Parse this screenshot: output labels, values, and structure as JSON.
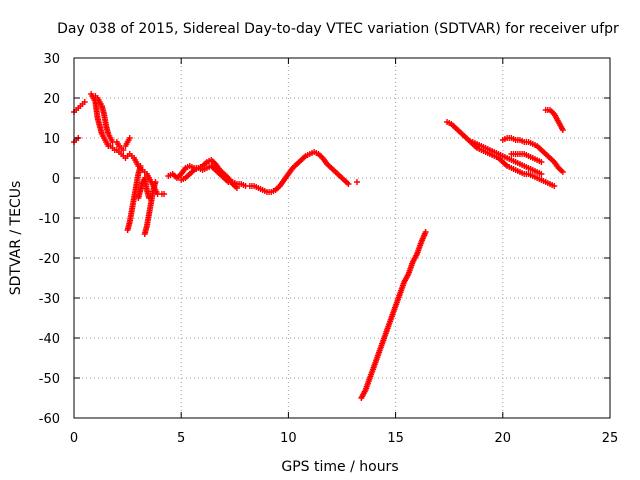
{
  "chart_data": {
    "type": "scatter",
    "title": "Day 038 of 2015, Sidereal Day-to-day VTEC variation (SDTVAR) for receiver ufpr",
    "xlabel": "GPS time / hours",
    "ylabel": "SDTVAR / TECUs",
    "xlim": [
      0,
      25
    ],
    "ylim": [
      -60,
      30
    ],
    "xticks": [
      0,
      5,
      10,
      15,
      20,
      25
    ],
    "yticks": [
      -60,
      -50,
      -40,
      -30,
      -20,
      -10,
      0,
      10,
      20,
      30
    ],
    "grid": true,
    "marker": "+",
    "color": "#ff0000",
    "segments": [
      [
        [
          0.0,
          16.5
        ],
        [
          0.1,
          17
        ],
        [
          0.2,
          17.5
        ],
        [
          0.3,
          18
        ],
        [
          0.4,
          18.5
        ],
        [
          0.5,
          19
        ]
      ],
      [
        [
          0.0,
          9
        ],
        [
          0.1,
          9.5
        ],
        [
          0.2,
          10
        ]
      ],
      [
        [
          0.8,
          21
        ],
        [
          0.9,
          20
        ],
        [
          1.0,
          19
        ],
        [
          1.05,
          17
        ],
        [
          1.1,
          15
        ],
        [
          1.2,
          13
        ],
        [
          1.3,
          11
        ],
        [
          1.4,
          10
        ],
        [
          1.5,
          9
        ],
        [
          1.6,
          8
        ],
        [
          1.7,
          8
        ],
        [
          1.8,
          7.5
        ],
        [
          1.9,
          7
        ],
        [
          2.0,
          7
        ],
        [
          2.1,
          6.5
        ],
        [
          2.2,
          6
        ],
        [
          2.3,
          5.5
        ],
        [
          2.4,
          5
        ],
        [
          2.5,
          5.5
        ],
        [
          2.6,
          6
        ],
        [
          2.7,
          5.5
        ],
        [
          2.8,
          5
        ],
        [
          2.9,
          4
        ],
        [
          3.0,
          3
        ],
        [
          3.1,
          2.5
        ],
        [
          3.2,
          2
        ],
        [
          3.3,
          1.5
        ],
        [
          3.4,
          1
        ],
        [
          3.5,
          0
        ],
        [
          3.6,
          -1
        ],
        [
          3.7,
          -2
        ],
        [
          3.8,
          -3
        ],
        [
          3.9,
          -4
        ]
      ],
      [
        [
          1.0,
          20.5
        ],
        [
          1.1,
          20
        ],
        [
          1.2,
          19
        ],
        [
          1.3,
          18
        ],
        [
          1.4,
          16
        ],
        [
          1.5,
          13
        ],
        [
          1.6,
          11
        ],
        [
          1.7,
          10
        ],
        [
          1.8,
          9
        ]
      ],
      [
        [
          2.0,
          9
        ],
        [
          2.1,
          8
        ],
        [
          2.2,
          7.5
        ],
        [
          2.3,
          7
        ]
      ],
      [
        [
          2.5,
          -13
        ],
        [
          2.6,
          -11
        ],
        [
          2.7,
          -8
        ],
        [
          2.8,
          -5
        ],
        [
          2.9,
          -2
        ],
        [
          3.0,
          1
        ],
        [
          3.1,
          3
        ]
      ],
      [
        [
          2.4,
          8
        ],
        [
          2.5,
          9
        ],
        [
          2.6,
          10
        ]
      ],
      [
        [
          3.3,
          -14
        ],
        [
          3.4,
          -12
        ],
        [
          3.5,
          -9
        ],
        [
          3.6,
          -6
        ],
        [
          3.7,
          -3
        ],
        [
          3.8,
          -1
        ]
      ],
      [
        [
          3.0,
          -5
        ],
        [
          3.1,
          -3
        ],
        [
          3.2,
          -1
        ],
        [
          3.3,
          0
        ],
        [
          3.4,
          -3
        ],
        [
          3.5,
          -5
        ]
      ],
      [
        [
          4.1,
          -4
        ],
        [
          4.2,
          -4
        ]
      ],
      [
        [
          4.4,
          0.5
        ],
        [
          4.6,
          1
        ],
        [
          4.8,
          0
        ],
        [
          5.0,
          1
        ],
        [
          5.2,
          2.5
        ],
        [
          5.4,
          3
        ],
        [
          5.6,
          2.5
        ],
        [
          5.8,
          2.5
        ],
        [
          6.0,
          2
        ],
        [
          6.2,
          2.5
        ],
        [
          6.4,
          3
        ],
        [
          6.6,
          2
        ],
        [
          6.8,
          1
        ],
        [
          7.0,
          0
        ],
        [
          7.2,
          -1
        ],
        [
          7.4,
          -1
        ],
        [
          7.6,
          -1.5
        ],
        [
          7.8,
          -1.5
        ],
        [
          8.0,
          -2
        ]
      ],
      [
        [
          5.0,
          -0.5
        ],
        [
          5.2,
          0
        ],
        [
          5.4,
          1
        ],
        [
          5.6,
          2
        ],
        [
          5.8,
          2.5
        ],
        [
          6.0,
          3
        ],
        [
          6.2,
          4
        ],
        [
          6.4,
          4.5
        ],
        [
          6.6,
          3.5
        ],
        [
          6.8,
          2
        ],
        [
          7.0,
          1
        ],
        [
          7.2,
          0
        ],
        [
          7.4,
          -1.5
        ],
        [
          7.6,
          -2.5
        ]
      ],
      [
        [
          8.2,
          -2
        ],
        [
          8.4,
          -2
        ],
        [
          8.6,
          -2.5
        ],
        [
          8.8,
          -3
        ],
        [
          9.0,
          -3.5
        ],
        [
          9.2,
          -3.5
        ],
        [
          9.4,
          -3
        ],
        [
          9.6,
          -2
        ],
        [
          9.8,
          -0.5
        ],
        [
          10.0,
          1
        ],
        [
          10.2,
          2.5
        ],
        [
          10.4,
          3.5
        ],
        [
          10.6,
          4.5
        ],
        [
          10.8,
          5.5
        ],
        [
          11.0,
          6
        ],
        [
          11.2,
          6.5
        ],
        [
          11.4,
          6
        ],
        [
          11.6,
          5
        ],
        [
          11.8,
          3.5
        ],
        [
          12.0,
          2.5
        ],
        [
          12.2,
          1.5
        ],
        [
          12.4,
          0.5
        ],
        [
          12.6,
          -0.5
        ],
        [
          12.8,
          -1.5
        ]
      ],
      [
        [
          13.2,
          -1
        ]
      ],
      [
        [
          13.4,
          -55
        ],
        [
          13.6,
          -53
        ],
        [
          13.8,
          -50
        ],
        [
          14.0,
          -47
        ],
        [
          14.2,
          -44
        ],
        [
          14.4,
          -41
        ],
        [
          14.6,
          -38
        ],
        [
          14.8,
          -35
        ],
        [
          15.0,
          -32
        ],
        [
          15.2,
          -29
        ],
        [
          15.4,
          -26
        ],
        [
          15.6,
          -24
        ],
        [
          15.8,
          -21
        ],
        [
          16.0,
          -19
        ],
        [
          16.2,
          -16
        ],
        [
          16.4,
          -13.5
        ]
      ],
      [
        [
          17.4,
          14
        ],
        [
          17.6,
          13.5
        ],
        [
          17.8,
          12.5
        ],
        [
          18.0,
          11.5
        ],
        [
          18.2,
          10.5
        ],
        [
          18.4,
          9.5
        ],
        [
          18.6,
          8.5
        ],
        [
          18.8,
          7.5
        ],
        [
          19.0,
          7
        ],
        [
          19.2,
          6.5
        ],
        [
          19.4,
          6
        ],
        [
          19.6,
          5.5
        ],
        [
          19.8,
          5
        ],
        [
          20.0,
          4
        ],
        [
          20.2,
          3
        ],
        [
          20.4,
          2.5
        ],
        [
          20.6,
          2
        ],
        [
          20.8,
          1.5
        ],
        [
          21.0,
          1
        ],
        [
          21.2,
          1
        ],
        [
          21.4,
          0.5
        ],
        [
          21.6,
          0
        ],
        [
          21.8,
          -0.5
        ],
        [
          22.0,
          -1
        ],
        [
          22.2,
          -1.5
        ],
        [
          22.4,
          -2
        ]
      ],
      [
        [
          18.6,
          9
        ],
        [
          18.8,
          8.5
        ],
        [
          19.0,
          8
        ],
        [
          19.2,
          7.5
        ],
        [
          19.4,
          7
        ],
        [
          19.6,
          6.5
        ],
        [
          19.8,
          6
        ],
        [
          20.0,
          5.5
        ],
        [
          20.2,
          5
        ],
        [
          20.4,
          4.5
        ],
        [
          20.6,
          4
        ],
        [
          20.8,
          3.5
        ],
        [
          21.0,
          3
        ],
        [
          21.2,
          2.5
        ],
        [
          21.4,
          2
        ],
        [
          21.6,
          1.5
        ],
        [
          21.8,
          1
        ]
      ],
      [
        [
          20.0,
          9.5
        ],
        [
          20.2,
          10
        ],
        [
          20.4,
          10
        ],
        [
          20.6,
          9.5
        ],
        [
          20.8,
          9.5
        ],
        [
          21.0,
          9
        ],
        [
          21.2,
          9
        ],
        [
          21.4,
          8.5
        ],
        [
          21.6,
          8
        ],
        [
          21.8,
          7
        ],
        [
          22.0,
          6
        ],
        [
          22.2,
          5
        ],
        [
          22.4,
          4
        ],
        [
          22.6,
          2.5
        ],
        [
          22.8,
          1.5
        ]
      ],
      [
        [
          20.4,
          6
        ],
        [
          20.6,
          6
        ],
        [
          20.8,
          6
        ],
        [
          21.0,
          6
        ],
        [
          21.2,
          5.5
        ],
        [
          21.4,
          5
        ],
        [
          21.6,
          4.5
        ],
        [
          21.8,
          4
        ]
      ],
      [
        [
          22.0,
          17
        ],
        [
          22.2,
          17
        ],
        [
          22.4,
          16
        ],
        [
          22.6,
          14
        ],
        [
          22.8,
          12
        ]
      ]
    ]
  }
}
